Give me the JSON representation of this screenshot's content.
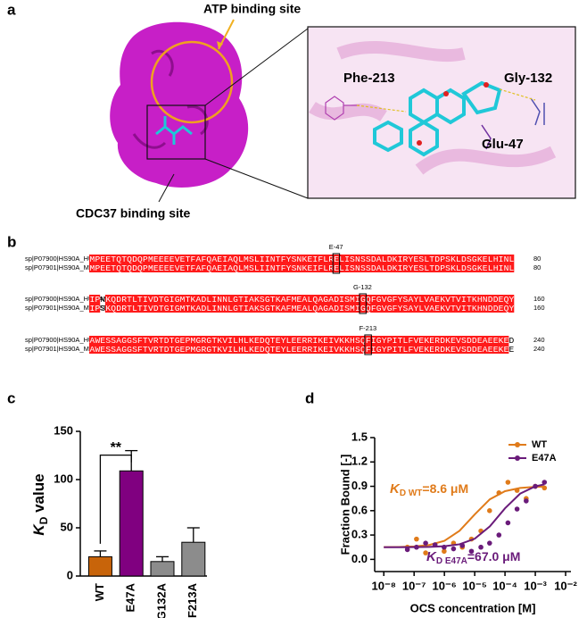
{
  "figure": {
    "a": {
      "label": "a",
      "atp_site": "ATP binding site",
      "cdc37_site": "CDC37 binding site",
      "residues": [
        "Phe-213",
        "Gly-132",
        "Glu-47"
      ]
    },
    "b": {
      "label": "b",
      "blocks": [
        {
          "marker": "E-47",
          "rows": [
            {
              "name": "sp|P07900|HS90A_HUMAN",
              "sequence": "MPEETQTQDQPMEEEEVETFAFQAEIAQLMSLIINTFYSNKEIFLRELISNSSDALDKIRYESLTDPSKLDSGKELHINL",
              "end": 80
            },
            {
              "name": "sp|P07901|HS90A_MOUSE",
              "sequence": "MPEETQTQDQPMEEEEVETFAFQAEIAQLMSLIINTFYSNKEIFLRELISNSSDALDKIRYESLTDPSKLDSGKELHINL",
              "end": 80
            }
          ]
        },
        {
          "marker": "G-132",
          "rows": [
            {
              "name": "sp|P07900|HS90A_HUMAN",
              "sequence": "IPNKQDRTLTIVDTGIGMTKADLINNLGTIAKSGTKAFMEALQAGADISMIGQFGVGFYSAYLVAEKVTVITKHNDDEQY",
              "end": 160
            },
            {
              "name": "sp|P07901|HS90A_MOUSE",
              "sequence": "IPSKQDRTLTIVDTGIGMTKADLINNLGTIAKSGTKAFMEALQAGADISMIGQFGVGFYSAYLVAEKVTVITKHNDDEQY",
              "end": 160
            }
          ]
        },
        {
          "marker": "F-213",
          "rows": [
            {
              "name": "sp|P07900|HS90A_HUMAN",
              "sequence": "AWESSAGGSFTVRTDTGEPMGRGTKVILHLKEDQTEYLEERRIKEIVKKHSQFIGYPITLFVEKERDKEVSDDEAEEKED",
              "end": 240
            },
            {
              "name": "sp|P07901|HS90A_MOUSE",
              "sequence": "AWESSAGGSFTVRTDTGEPMGRGTKVILHLKEDQTEYLEERRIKEIVKKHSQFIGYPITLFVEKERDKEVSDDEAEEKEE",
              "end": 240
            }
          ]
        }
      ]
    }
  },
  "chart_data": [
    {
      "type": "bar",
      "panel": "c",
      "y_label": {
        "k": "K",
        "sub": "D",
        "rest": " value"
      },
      "categories": [
        "WT",
        "E47A",
        "G132A",
        "F213A"
      ],
      "values": [
        20,
        109,
        15,
        35
      ],
      "errors": [
        6,
        21,
        5,
        15
      ],
      "colors": [
        "#c8640a",
        "#800080",
        "#8c8c8c",
        "#8c8c8c"
      ],
      "significance": "**",
      "ylim": [
        0,
        150
      ],
      "yticks": [
        0,
        50,
        100,
        150
      ]
    },
    {
      "type": "scatter",
      "panel": "d",
      "x_label": "OCS concentration [M]",
      "y_label": "Fraction Bound [-]",
      "log_x": true,
      "legend": "top-right",
      "xlim": [
        5e-09,
        0.015
      ],
      "xticks": [
        {
          "value": 1e-08,
          "label": "10⁻⁸"
        },
        {
          "value": 1e-07,
          "label": "10⁻⁷"
        },
        {
          "value": 1e-06,
          "label": "10⁻⁶"
        },
        {
          "value": 1e-05,
          "label": "10⁻⁵"
        },
        {
          "value": 0.0001,
          "label": "10⁻⁴"
        },
        {
          "value": 0.001,
          "label": "10⁻³"
        },
        {
          "value": 0.01,
          "label": "10⁻²"
        }
      ],
      "ylim": [
        -0.15,
        1.5
      ],
      "yticks": [
        {
          "value": 0,
          "label": "0.0"
        },
        {
          "value": 0.3,
          "label": "0.3"
        },
        {
          "value": 0.6,
          "label": "0.6"
        },
        {
          "value": 0.9,
          "label": "0.9"
        },
        {
          "value": 1.2,
          "label": "1.2"
        },
        {
          "value": 1.5,
          "label": "1.5"
        }
      ],
      "x": [
        6e-08,
        1.2e-07,
        2.4e-07,
        4.9e-07,
        9.8e-07,
        2e-06,
        3.9e-06,
        7.8e-06,
        1.6e-05,
        3.1e-05,
        6.3e-05,
        0.000125,
        0.00025,
        0.0005,
        0.001,
        0.002
      ],
      "series": [
        {
          "name": "WT",
          "color": "#e07b1a",
          "values": [
            0.15,
            0.25,
            0.08,
            0.18,
            0.1,
            0.2,
            0.15,
            0.25,
            0.35,
            0.6,
            0.82,
            0.95,
            0.85,
            0.75,
            0.9,
            0.88
          ],
          "fit": {
            "x": [
              1e-08,
              3.16e-08,
              1e-07,
              3.16e-07,
              1e-06,
              3.16e-06,
              1e-05,
              3.16e-05,
              0.0001,
              0.000316,
              0.001,
              0.002
            ],
            "values": [
              0.151,
              0.153,
              0.159,
              0.177,
              0.228,
              0.352,
              0.553,
              0.74,
              0.84,
              0.88,
              0.894,
              0.897
            ]
          },
          "annotation": {
            "k": "K",
            "sub": "D WT",
            "text": "=8.6 μM"
          }
        },
        {
          "name": "E47A",
          "color": "#6a1b7a",
          "values": [
            0.12,
            0.15,
            0.2,
            0.18,
            0.15,
            0.13,
            0.17,
            0.1,
            0.15,
            0.2,
            0.3,
            0.45,
            0.62,
            0.72,
            0.9,
            0.95
          ],
          "fit": {
            "x": [
              1e-08,
              3.16e-08,
              1e-07,
              3.16e-07,
              1e-06,
              3.16e-06,
              1e-05,
              3.16e-05,
              0.0001,
              0.000316,
              0.001,
              0.002
            ],
            "values": [
              0.15,
              0.15,
              0.151,
              0.154,
              0.162,
              0.186,
              0.254,
              0.406,
              0.629,
              0.81,
              0.9,
              0.924
            ]
          },
          "annotation": {
            "k": "K",
            "sub": "D E47A",
            "text": "=67.0 μM"
          }
        }
      ]
    }
  ]
}
